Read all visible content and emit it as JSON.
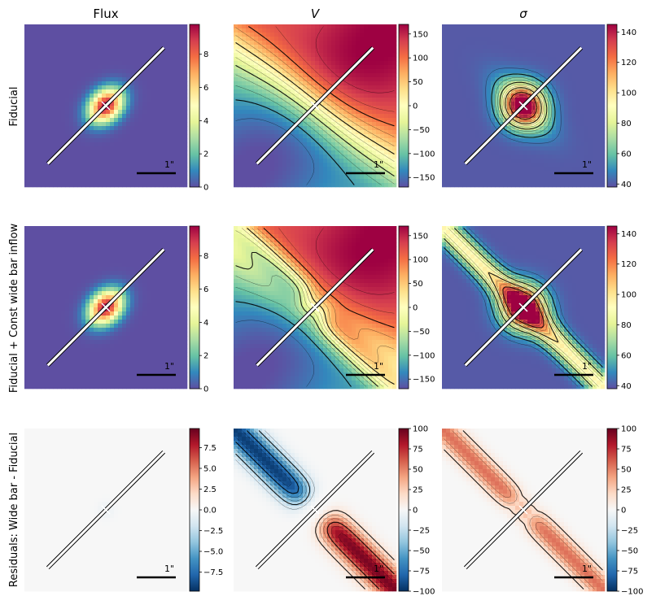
{
  "columns": [
    {
      "key": "flux",
      "title": "Flux"
    },
    {
      "key": "vel",
      "title": "V"
    },
    {
      "key": "sigma",
      "title": "σ"
    }
  ],
  "rows": [
    {
      "key": "fiducial",
      "label": "Fiducial"
    },
    {
      "key": "bar",
      "label": "Fiducial + Const wide bar inflow"
    },
    {
      "key": "resid",
      "label": "Residuals: Wide bar - Fiducial"
    }
  ],
  "scale_bar_label": "1\"",
  "colormaps": {
    "maps": "Spectral_r",
    "residuals": "RdBu_r"
  },
  "chart_data": [
    {
      "type": "heatmap",
      "row": "Fiducial",
      "column": "Flux",
      "cmap": "Spectral_r",
      "vlim": [
        0,
        9.8
      ],
      "colorbar_ticks": [
        0,
        2,
        4,
        6,
        8
      ],
      "colorbar_labels": [
        "0",
        "2",
        "4",
        "6",
        "8"
      ],
      "peak": 9.8,
      "contours": false,
      "slit_angle_deg": 45
    },
    {
      "type": "heatmap",
      "row": "Fiducial",
      "column": "V",
      "cmap": "Spectral_r",
      "vlim": [
        -170,
        170
      ],
      "colorbar_ticks": [
        -150,
        -100,
        -50,
        0,
        50,
        100,
        150
      ],
      "colorbar_labels": [
        "−150",
        "−100",
        "−50",
        "0",
        "50",
        "100",
        "150"
      ],
      "contours": true,
      "slit_angle_deg": 45
    },
    {
      "type": "heatmap",
      "row": "Fiducial",
      "column": "σ",
      "cmap": "Spectral_r",
      "vlim": [
        38,
        145
      ],
      "colorbar_ticks": [
        40,
        60,
        80,
        100,
        120,
        140
      ],
      "colorbar_labels": [
        "40",
        "60",
        "80",
        "100",
        "120",
        "140"
      ],
      "contours": true,
      "slit_angle_deg": 45
    },
    {
      "type": "heatmap",
      "row": "Fiducial + Const wide bar inflow",
      "column": "Flux",
      "cmap": "Spectral_r",
      "vlim": [
        0,
        9.8
      ],
      "colorbar_ticks": [
        0,
        2,
        4,
        6,
        8
      ],
      "colorbar_labels": [
        "0",
        "2",
        "4",
        "6",
        "8"
      ],
      "peak": 9.8,
      "contours": false,
      "slit_angle_deg": 45
    },
    {
      "type": "heatmap",
      "row": "Fiducial + Const wide bar inflow",
      "column": "V",
      "cmap": "Spectral_r",
      "vlim": [
        -170,
        170
      ],
      "colorbar_ticks": [
        -150,
        -100,
        -50,
        0,
        50,
        100,
        150
      ],
      "colorbar_labels": [
        "−150",
        "−100",
        "−50",
        "0",
        "50",
        "100",
        "150"
      ],
      "contours": true,
      "slit_angle_deg": 45
    },
    {
      "type": "heatmap",
      "row": "Fiducial + Const wide bar inflow",
      "column": "σ",
      "cmap": "Spectral_r",
      "vlim": [
        38,
        145
      ],
      "colorbar_ticks": [
        40,
        60,
        80,
        100,
        120,
        140
      ],
      "colorbar_labels": [
        "40",
        "60",
        "80",
        "100",
        "120",
        "140"
      ],
      "contours": true,
      "slit_angle_deg": 45
    },
    {
      "type": "heatmap",
      "row": "Residuals: Wide bar - Fiducial",
      "column": "Flux",
      "cmap": "RdBu_r",
      "vlim": [
        -9.8,
        9.8
      ],
      "colorbar_ticks": [
        -7.5,
        -5,
        -2.5,
        0,
        2.5,
        5,
        7.5
      ],
      "colorbar_labels": [
        "−7.5",
        "−5.0",
        "−2.5",
        "0.0",
        "2.5",
        "5.0",
        "7.5"
      ],
      "contours": true,
      "slit_angle_deg": 45
    },
    {
      "type": "heatmap",
      "row": "Residuals: Wide bar - Fiducial",
      "column": "V",
      "cmap": "RdBu_r",
      "vlim": [
        -100,
        100
      ],
      "colorbar_ticks": [
        -100,
        -75,
        -50,
        -25,
        0,
        25,
        50,
        75,
        100
      ],
      "colorbar_labels": [
        "−100",
        "−75",
        "−50",
        "−25",
        "0",
        "25",
        "50",
        "75",
        "100"
      ],
      "contours": true,
      "slit_angle_deg": 45
    },
    {
      "type": "heatmap",
      "row": "Residuals: Wide bar - Fiducial",
      "column": "σ",
      "cmap": "RdBu_r",
      "vlim": [
        -100,
        100
      ],
      "colorbar_ticks": [
        -100,
        -75,
        -50,
        -25,
        0,
        25,
        50,
        75,
        100
      ],
      "colorbar_labels": [
        "−100",
        "−75",
        "−50",
        "−25",
        "0",
        "25",
        "50",
        "75",
        "100"
      ],
      "contours": true,
      "slit_angle_deg": 45
    }
  ]
}
